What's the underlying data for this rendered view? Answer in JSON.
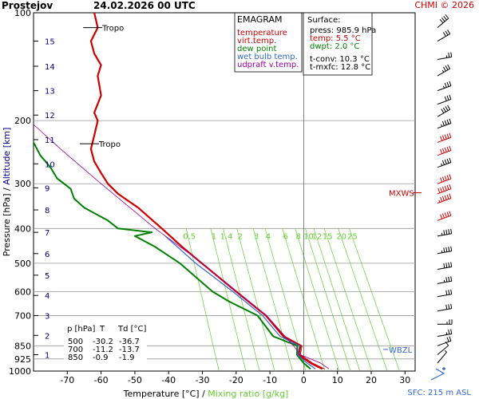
{
  "header": {
    "station": "Prostejov",
    "datetime": "24.02.2026 00 UTC",
    "credit": "CHMI © 2026"
  },
  "colors": {
    "temperature": "#cc0000",
    "dewpoint": "#008000",
    "wetbulb": "#3366cc",
    "parcel": "#990099",
    "mixing": "#66cc33",
    "grid": "#999999",
    "altitude": "#000080",
    "mxws": "#cc0000"
  },
  "chart_data": {
    "type": "line",
    "title": "EMAGRAM",
    "xlabel": "Temperature [°C]",
    "xlabel_sep": "/",
    "xlabel2": "Mixing ratio [g/kg]",
    "ylabel": "Pressure [hPa]",
    "ylabel_sep": "/",
    "ylabel2": "Altitude [km]",
    "x_ticks": [
      -70,
      -60,
      -50,
      -40,
      -30,
      -20,
      -10,
      0,
      10,
      20,
      30
    ],
    "xlim": [
      -80,
      33
    ],
    "ylim": [
      1000,
      100
    ],
    "p_ticks": [
      100,
      200,
      300,
      400,
      500,
      600,
      700,
      850,
      925,
      1000
    ],
    "p_grid": [
      200,
      300,
      400,
      500,
      600,
      700,
      850,
      925
    ],
    "alt_ticks": [
      {
        "km": 1,
        "p": 900
      },
      {
        "km": 2,
        "p": 795
      },
      {
        "km": 3,
        "p": 700
      },
      {
        "km": 4,
        "p": 615
      },
      {
        "km": 5,
        "p": 540
      },
      {
        "km": 6,
        "p": 470
      },
      {
        "km": 7,
        "p": 410
      },
      {
        "km": 8,
        "p": 355
      },
      {
        "km": 9,
        "p": 308
      },
      {
        "km": 10,
        "p": 264
      },
      {
        "km": 11,
        "p": 226
      },
      {
        "km": 12,
        "p": 193
      },
      {
        "km": 13,
        "p": 165
      },
      {
        "km": 14,
        "p": 141
      },
      {
        "km": 15,
        "p": 120
      }
    ],
    "mixing_ratio_labels": [
      "0.5",
      "1",
      "1.4",
      "2",
      "3",
      "4",
      "6",
      "8",
      "10",
      "12",
      "15",
      "20",
      "25"
    ],
    "mixing_ratio_values": [
      0.5,
      1,
      1.4,
      2,
      3,
      4,
      6,
      8,
      10,
      12,
      15,
      20,
      25
    ],
    "series": [
      {
        "name": "temperature",
        "points": [
          [
            5.5,
            986
          ],
          [
            2,
            950
          ],
          [
            -1.5,
            900
          ],
          [
            -0.9,
            850
          ],
          [
            -6,
            800
          ],
          [
            -11.2,
            700
          ],
          [
            -20,
            600
          ],
          [
            -30.2,
            500
          ],
          [
            -36,
            450
          ],
          [
            -42,
            400
          ],
          [
            -49,
            350
          ],
          [
            -55,
            320
          ],
          [
            -58,
            300
          ],
          [
            -60,
            280
          ],
          [
            -62,
            260
          ],
          [
            -63,
            240
          ],
          [
            -62,
            220
          ],
          [
            -61,
            200
          ],
          [
            -62,
            190
          ],
          [
            -60,
            170
          ],
          [
            -61,
            150
          ],
          [
            -60,
            140
          ],
          [
            -62,
            130
          ],
          [
            -63,
            120
          ],
          [
            -61,
            110
          ],
          [
            -62,
            100
          ]
        ]
      },
      {
        "name": "virt.temp.",
        "points": [
          [
            6.2,
            986
          ],
          [
            2.6,
            950
          ],
          [
            -1,
            900
          ],
          [
            -0.5,
            850
          ],
          [
            -5.6,
            800
          ],
          [
            -11,
            700
          ],
          [
            -19.8,
            600
          ],
          [
            -30.1,
            500
          ],
          [
            -36,
            450
          ],
          [
            -42,
            400
          ]
        ]
      },
      {
        "name": "dew point",
        "points": [
          [
            2,
            986
          ],
          [
            0,
            950
          ],
          [
            -2,
            900
          ],
          [
            -1.9,
            850
          ],
          [
            -9,
            800
          ],
          [
            -13.7,
            700
          ],
          [
            -22,
            640
          ],
          [
            -27,
            600
          ],
          [
            -36.7,
            500
          ],
          [
            -44,
            450
          ],
          [
            -50,
            420
          ],
          [
            -45,
            410
          ],
          [
            -55,
            400
          ],
          [
            -58,
            380
          ],
          [
            -65,
            350
          ],
          [
            -68,
            330
          ],
          [
            -69,
            310
          ],
          [
            -73,
            290
          ],
          [
            -75,
            270
          ],
          [
            -78,
            250
          ],
          [
            -80,
            230
          ]
        ]
      },
      {
        "name": "wet bulb temp.",
        "points": [
          [
            3.5,
            986
          ],
          [
            1,
            950
          ],
          [
            -1.8,
            900
          ],
          [
            -1.2,
            850
          ],
          [
            -7,
            800
          ],
          [
            -12.2,
            700
          ],
          [
            -21,
            600
          ],
          [
            -32,
            500
          ],
          [
            -41,
            420
          ]
        ]
      },
      {
        "name": "udpraft v.temp.",
        "points": [
          [
            7.5,
            986
          ],
          [
            5,
            950
          ],
          [
            -1,
            900
          ],
          [
            -3,
            850
          ],
          [
            -11,
            700
          ],
          [
            -20,
            600
          ],
          [
            -30,
            500
          ],
          [
            -44,
            400
          ],
          [
            -60,
            300
          ],
          [
            -72,
            240
          ],
          [
            -80,
            205
          ]
        ]
      }
    ],
    "tropopause": [
      {
        "label": "Tropo",
        "p": 110,
        "t": -62
      },
      {
        "label": "Tropo",
        "p": 232,
        "t": -63
      }
    ],
    "mxws": {
      "label": "MXWS",
      "p": 318
    },
    "wbzl": {
      "label": "WBZL",
      "p": 870
    },
    "surface_info": {
      "title": "Surface:",
      "press": "press: 985.9 hPa",
      "temp": "temp: 5.5 °C",
      "dwpt": "dwpt: 2.0 °C",
      "tconv": "t-conv: 10.3 °C",
      "tmxfc": "t-mxfc: 12.8 °C"
    },
    "table": {
      "headers": [
        "p [hPa]",
        "T",
        "Td [°C]"
      ],
      "rows": [
        [
          "500",
          "-30.2",
          "-36.7"
        ],
        [
          "700",
          "-11.2",
          "-13.7"
        ],
        [
          "850",
          "-0.9",
          "-1.9"
        ]
      ]
    },
    "wind_profile": [
      {
        "p": 110,
        "dir": 230,
        "kt": 40
      },
      {
        "p": 120,
        "dir": 240,
        "kt": 30
      },
      {
        "p": 135,
        "dir": 260,
        "kt": 25
      },
      {
        "p": 150,
        "dir": 240,
        "kt": 35
      },
      {
        "p": 165,
        "dir": 250,
        "kt": 35
      },
      {
        "p": 180,
        "dir": 250,
        "kt": 30
      },
      {
        "p": 195,
        "dir": 240,
        "kt": 40
      },
      {
        "p": 210,
        "dir": 250,
        "kt": 45
      },
      {
        "p": 230,
        "dir": 250,
        "kt": 50
      },
      {
        "p": 250,
        "dir": 250,
        "kt": 50
      },
      {
        "p": 270,
        "dir": 250,
        "kt": 45
      },
      {
        "p": 300,
        "dir": 250,
        "kt": 50
      },
      {
        "p": 320,
        "dir": 250,
        "kt": 60
      },
      {
        "p": 340,
        "dir": 250,
        "kt": 55
      },
      {
        "p": 380,
        "dir": 250,
        "kt": 50
      },
      {
        "p": 420,
        "dir": 260,
        "kt": 45
      },
      {
        "p": 470,
        "dir": 260,
        "kt": 45
      },
      {
        "p": 520,
        "dir": 260,
        "kt": 40
      },
      {
        "p": 570,
        "dir": 260,
        "kt": 35
      },
      {
        "p": 620,
        "dir": 260,
        "kt": 30
      },
      {
        "p": 680,
        "dir": 260,
        "kt": 30
      },
      {
        "p": 740,
        "dir": 270,
        "kt": 25
      },
      {
        "p": 800,
        "dir": 260,
        "kt": 25
      },
      {
        "p": 850,
        "dir": 250,
        "kt": 20
      },
      {
        "p": 900,
        "dir": 230,
        "kt": 10
      },
      {
        "p": 950,
        "dir": 220,
        "kt": 5
      }
    ],
    "sfc_label": "SFC: 215 m ASL"
  },
  "legend": [
    "EMAGRAM",
    "temperature",
    "virt.temp.",
    "dew point",
    "wet bulb temp.",
    "udpraft v.temp."
  ]
}
